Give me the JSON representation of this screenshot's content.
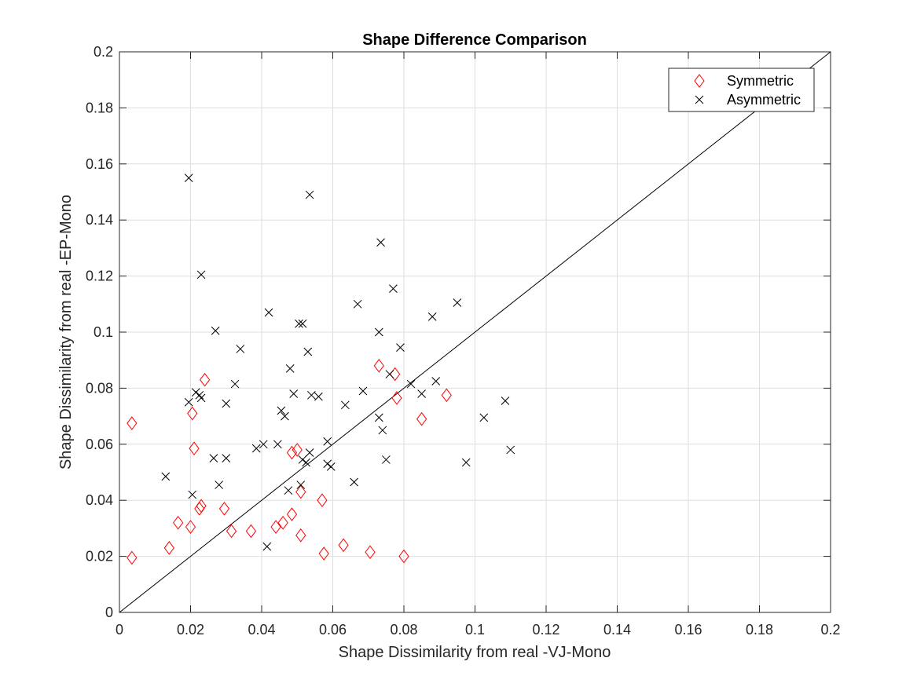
{
  "chart_data": {
    "type": "scatter",
    "title": "Shape Difference Comparison",
    "xlabel": "Shape Dissimilarity from real -VJ-Mono",
    "ylabel": "Shape Dissimilarity from real -EP-Mono",
    "xlim": [
      0,
      0.2
    ],
    "ylim": [
      0,
      0.2
    ],
    "xticks": [
      "0",
      "0.02",
      "0.04",
      "0.06",
      "0.08",
      "0.1",
      "0.12",
      "0.14",
      "0.16",
      "0.18",
      "0.2"
    ],
    "yticks": [
      "0",
      "0.02",
      "0.04",
      "0.06",
      "0.08",
      "0.1",
      "0.12",
      "0.14",
      "0.16",
      "0.18",
      "0.2"
    ],
    "grid": true,
    "legend_position": "top-right",
    "reference_line": {
      "x": [
        0,
        0.2
      ],
      "y": [
        0,
        0.2
      ],
      "color": "#000000"
    },
    "series": [
      {
        "name": "Symmetric",
        "marker": "diamond",
        "color": "#ff0000",
        "points": [
          [
            0.0035,
            0.0675
          ],
          [
            0.0035,
            0.0195
          ],
          [
            0.014,
            0.023
          ],
          [
            0.0165,
            0.032
          ],
          [
            0.02,
            0.0305
          ],
          [
            0.0205,
            0.071
          ],
          [
            0.021,
            0.0585
          ],
          [
            0.0225,
            0.037
          ],
          [
            0.023,
            0.038
          ],
          [
            0.024,
            0.083
          ],
          [
            0.0295,
            0.037
          ],
          [
            0.0315,
            0.029
          ],
          [
            0.037,
            0.029
          ],
          [
            0.044,
            0.0305
          ],
          [
            0.046,
            0.032
          ],
          [
            0.0485,
            0.057
          ],
          [
            0.0485,
            0.035
          ],
          [
            0.05,
            0.058
          ],
          [
            0.051,
            0.043
          ],
          [
            0.051,
            0.0275
          ],
          [
            0.057,
            0.04
          ],
          [
            0.0575,
            0.021
          ],
          [
            0.063,
            0.024
          ],
          [
            0.0705,
            0.0215
          ],
          [
            0.073,
            0.088
          ],
          [
            0.0775,
            0.085
          ],
          [
            0.078,
            0.0765
          ],
          [
            0.08,
            0.02
          ],
          [
            0.085,
            0.069
          ],
          [
            0.092,
            0.0775
          ]
        ]
      },
      {
        "name": "Asymmetric",
        "marker": "x",
        "color": "#000000",
        "points": [
          [
            0.0195,
            0.155
          ],
          [
            0.023,
            0.1205
          ],
          [
            0.0535,
            0.149
          ],
          [
            0.0735,
            0.132
          ],
          [
            0.013,
            0.0485
          ],
          [
            0.0195,
            0.075
          ],
          [
            0.0205,
            0.042
          ],
          [
            0.0215,
            0.0785
          ],
          [
            0.0225,
            0.0775
          ],
          [
            0.023,
            0.0765
          ],
          [
            0.0265,
            0.055
          ],
          [
            0.027,
            0.1005
          ],
          [
            0.028,
            0.0455
          ],
          [
            0.03,
            0.055
          ],
          [
            0.03,
            0.0745
          ],
          [
            0.0325,
            0.0815
          ],
          [
            0.034,
            0.094
          ],
          [
            0.0385,
            0.0585
          ],
          [
            0.0405,
            0.06
          ],
          [
            0.0415,
            0.0235
          ],
          [
            0.042,
            0.107
          ],
          [
            0.0445,
            0.06
          ],
          [
            0.0455,
            0.072
          ],
          [
            0.0465,
            0.07
          ],
          [
            0.0475,
            0.0435
          ],
          [
            0.048,
            0.087
          ],
          [
            0.049,
            0.078
          ],
          [
            0.0505,
            0.103
          ],
          [
            0.051,
            0.0455
          ],
          [
            0.0515,
            0.103
          ],
          [
            0.0515,
            0.0545
          ],
          [
            0.0525,
            0.0535
          ],
          [
            0.053,
            0.093
          ],
          [
            0.0535,
            0.057
          ],
          [
            0.054,
            0.0775
          ],
          [
            0.056,
            0.077
          ],
          [
            0.0585,
            0.061
          ],
          [
            0.0585,
            0.053
          ],
          [
            0.0595,
            0.052
          ],
          [
            0.0635,
            0.074
          ],
          [
            0.066,
            0.0465
          ],
          [
            0.067,
            0.11
          ],
          [
            0.0685,
            0.079
          ],
          [
            0.073,
            0.1
          ],
          [
            0.073,
            0.0695
          ],
          [
            0.074,
            0.065
          ],
          [
            0.075,
            0.0545
          ],
          [
            0.076,
            0.085
          ],
          [
            0.077,
            0.1155
          ],
          [
            0.079,
            0.0945
          ],
          [
            0.082,
            0.0815
          ],
          [
            0.085,
            0.078
          ],
          [
            0.088,
            0.1055
          ],
          [
            0.089,
            0.0825
          ],
          [
            0.095,
            0.1105
          ],
          [
            0.0975,
            0.0535
          ],
          [
            0.1025,
            0.0695
          ],
          [
            0.1085,
            0.0755
          ],
          [
            0.11,
            0.058
          ]
        ]
      }
    ]
  }
}
